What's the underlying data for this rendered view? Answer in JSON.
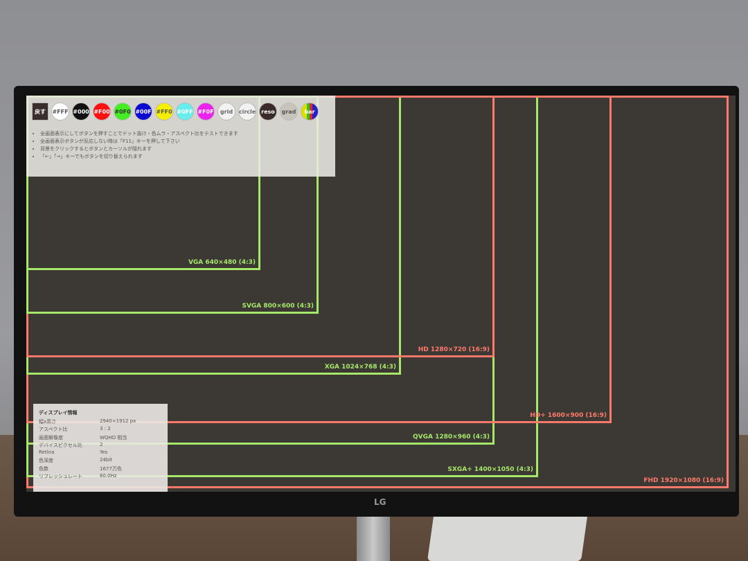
{
  "toolbar": {
    "back": "戻す",
    "buttons": [
      {
        "label": "#FFF",
        "bg": "#ffffff",
        "fg": "#555"
      },
      {
        "label": "#000",
        "bg": "#111111",
        "fg": "#fff"
      },
      {
        "label": "#F00",
        "bg": "#ff1010",
        "fg": "#fff"
      },
      {
        "label": "#0F0",
        "bg": "#44ee22",
        "fg": "#333"
      },
      {
        "label": "#00F",
        "bg": "#0a0ad0",
        "fg": "#fff"
      },
      {
        "label": "#FF0",
        "bg": "#f5f000",
        "fg": "#555"
      },
      {
        "label": "#0FF",
        "bg": "#66eeee",
        "fg": "#fff"
      },
      {
        "label": "#F0F",
        "bg": "#ee22ee",
        "fg": "#fff"
      },
      {
        "label": "grid",
        "bg": "#f2f2f2",
        "fg": "#666"
      },
      {
        "label": "circle",
        "bg": "#f2f2f2",
        "fg": "#666"
      },
      {
        "label": "reso",
        "bg": "#3a2a28",
        "fg": "#fff"
      },
      {
        "label": "grad",
        "bg": "#c8c4bc",
        "fg": "#555"
      },
      {
        "label": "bar",
        "bg": "linear-gradient(90deg,#dd0 0 33%,#2c2 33% 50%,#e22 50% 66%,#22c 66%)",
        "fg": "#fff"
      }
    ]
  },
  "notes": [
    "全画面表示にしてボタンを押すことでドット抜け・色ムラ・アスペクト比をテストできます",
    "全画面表示ボタンが反応しない時は「F11」キーを押して下さい",
    "背景をクリックするとボタンとカーソルが隠れます",
    "「←」「→」キーでもボタンを切り替えられます"
  ],
  "resolutions": [
    {
      "label": "FHD 1920×1080 (16:9)",
      "w": 1920,
      "h": 1080,
      "color": "r"
    },
    {
      "label": "SXGA+ 1400×1050 (4:3)",
      "w": 1400,
      "h": 1050,
      "color": "g"
    },
    {
      "label": "QVGA 1280×960 (4:3)",
      "w": 1280,
      "h": 960,
      "color": "g"
    },
    {
      "label": "HD+ 1600×900 (16:9)",
      "w": 1600,
      "h": 900,
      "color": "r"
    },
    {
      "label": "XGA 1024×768 (4:3)",
      "w": 1024,
      "h": 768,
      "color": "g"
    },
    {
      "label": "HD 1280×720 (16:9)",
      "w": 1280,
      "h": 720,
      "color": "r"
    },
    {
      "label": "SVGA 800×600 (4:3)",
      "w": 800,
      "h": 600,
      "color": "g"
    },
    {
      "label": "VGA 640×480 (4:3)",
      "w": 640,
      "h": 480,
      "color": "g"
    }
  ],
  "info": {
    "title": "ディスプレイ情報",
    "rows": [
      [
        "幅x高さ",
        "2940×1912 px"
      ],
      [
        "アスペクト比",
        "3 : 2"
      ],
      [
        "画面解像度",
        "WQHD 相当"
      ],
      [
        "デバイスピクセル比",
        "2"
      ],
      [
        "Retina",
        "Yes"
      ],
      [
        "色深度",
        "24bit"
      ],
      [
        "色数",
        "1677万色"
      ],
      [
        "リフレッシュレート",
        "60.0Hz"
      ]
    ]
  },
  "brand": "LG"
}
